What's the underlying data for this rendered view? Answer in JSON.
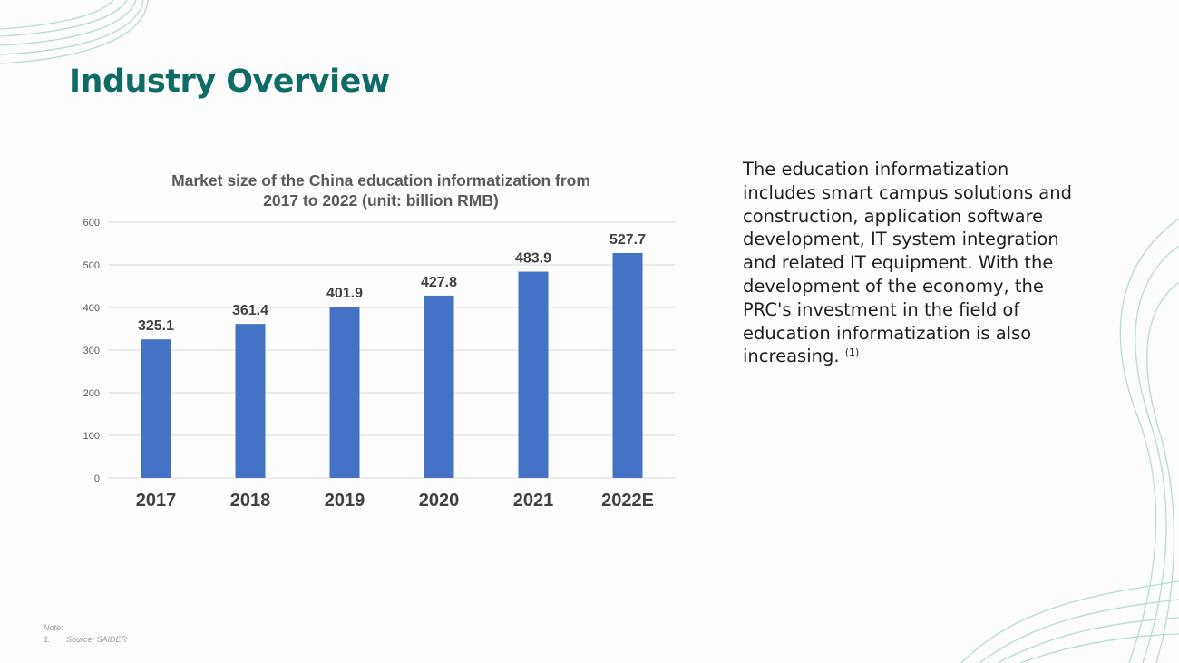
{
  "page": {
    "title": "Industry Overview"
  },
  "description": {
    "text": "The education informatization includes smart campus solutions and construction, application software development, IT system integration and related IT equipment. With the development of the economy, the PRC's investment in the field of education informatization is also increasing.",
    "footnote_ref": "(1)"
  },
  "note": {
    "label": "Note:",
    "items": [
      {
        "number": "1.",
        "text": "Source: SAIDER"
      }
    ]
  },
  "colors": {
    "title": "#0f6b66",
    "bar": "#4472c4",
    "decoration": "#b5dcd3"
  },
  "chart_data": {
    "type": "bar",
    "title_lines": [
      "Market size of the China education informatization from",
      "2017 to 2022 (unit: billion RMB)"
    ],
    "categories": [
      "2017",
      "2018",
      "2019",
      "2020",
      "2021",
      "2022E"
    ],
    "values": [
      325.1,
      361.4,
      401.9,
      427.8,
      483.9,
      527.7
    ],
    "data_labels": [
      "325.1",
      "361.4",
      "401.9",
      "427.8",
      "483.9",
      "527.7"
    ],
    "ylim": [
      0,
      600
    ],
    "yticks": [
      0,
      100,
      200,
      300,
      400,
      500,
      600
    ],
    "grid": true,
    "legend": "none",
    "xlabel": "",
    "ylabel": ""
  }
}
